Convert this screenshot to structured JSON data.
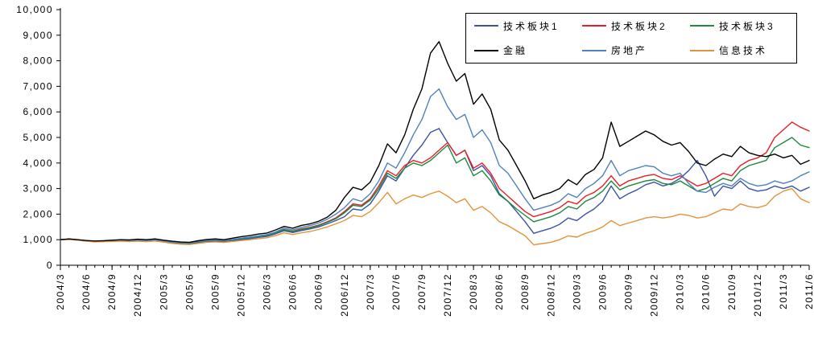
{
  "chart_data": {
    "type": "line",
    "title": "",
    "xlabel": "",
    "ylabel": "",
    "ylim": [
      0,
      10000
    ],
    "grid": false,
    "legend_position": "top-right",
    "y_tick_values": [
      0,
      1000,
      2000,
      3000,
      4000,
      5000,
      6000,
      7000,
      8000,
      9000,
      10000
    ],
    "y_tick_labels": [
      "0",
      "1,000",
      "2,000",
      "3,000",
      "4,000",
      "5,000",
      "6,000",
      "7,000",
      "8,000",
      "9,000",
      "10,000"
    ],
    "x_tick_positions": [
      0,
      3,
      6,
      9,
      12,
      15,
      18,
      21,
      24,
      27,
      30,
      33,
      36,
      39,
      42,
      45,
      48,
      51,
      54,
      57,
      60,
      63,
      66,
      69,
      72,
      75,
      78,
      81,
      84,
      87
    ],
    "x_tick_labels": [
      "2004/3",
      "2004/6",
      "2004/9",
      "2004/12",
      "2005/3",
      "2005/6",
      "2005/9",
      "2005/12",
      "2006/3",
      "2006/6",
      "2006/9",
      "2006/12",
      "2007/3",
      "2007/6",
      "2007/9",
      "2007/12",
      "2008/3",
      "2008/6",
      "2008/9",
      "2008/12",
      "2009/3",
      "2009/6",
      "2009/9",
      "2009/12",
      "2010/3",
      "2010/6",
      "2010/9",
      "2010/12",
      "2011/3",
      "2011/6"
    ],
    "series": [
      {
        "name": "技术板块1",
        "color": "#3a53a4",
        "values": [
          1000,
          1020,
          990,
          950,
          920,
          930,
          940,
          950,
          930,
          950,
          930,
          960,
          910,
          860,
          830,
          820,
          870,
          920,
          940,
          920,
          960,
          1000,
          1040,
          1090,
          1130,
          1230,
          1350,
          1280,
          1360,
          1420,
          1500,
          1620,
          1750,
          1900,
          2200,
          2150,
          2400,
          2900,
          3500,
          3300,
          3800,
          4300,
          4700,
          5200,
          5350,
          4800,
          4300,
          4500,
          3700,
          3900,
          3500,
          2800,
          2500,
          2100,
          1700,
          1250,
          1350,
          1450,
          1600,
          1850,
          1750,
          2000,
          2200,
          2500,
          3100,
          2600,
          2800,
          2950,
          3150,
          3250,
          3100,
          3200,
          3400,
          3700,
          4100,
          3500,
          2700,
          3100,
          3000,
          3300,
          3000,
          2900,
          2950,
          3100,
          3000,
          3100,
          2900,
          3050
        ]
      },
      {
        "name": "技术板块2",
        "color": "#ed1c24",
        "values": [
          1000,
          1025,
          1000,
          960,
          940,
          950,
          960,
          980,
          970,
          990,
          970,
          1000,
          950,
          900,
          870,
          860,
          910,
          960,
          980,
          960,
          1000,
          1050,
          1090,
          1140,
          1180,
          1280,
          1400,
          1330,
          1420,
          1480,
          1570,
          1700,
          1850,
          2100,
          2400,
          2350,
          2600,
          3100,
          3700,
          3500,
          3900,
          4100,
          4000,
          4200,
          4500,
          4800,
          4300,
          4500,
          3800,
          4000,
          3600,
          3000,
          2700,
          2400,
          2100,
          1900,
          2000,
          2100,
          2250,
          2500,
          2400,
          2700,
          2850,
          3100,
          3500,
          3100,
          3300,
          3400,
          3500,
          3550,
          3400,
          3350,
          3500,
          3300,
          3100,
          3200,
          3400,
          3600,
          3500,
          3900,
          4100,
          4200,
          4400,
          5000,
          5300,
          5600,
          5400,
          5250
        ]
      },
      {
        "name": "技术板块3",
        "color": "#1a8a3c",
        "values": [
          1000,
          1015,
          990,
          955,
          935,
          945,
          955,
          975,
          965,
          985,
          965,
          995,
          945,
          895,
          865,
          855,
          905,
          955,
          975,
          955,
          995,
          1040,
          1080,
          1130,
          1170,
          1270,
          1390,
          1320,
          1400,
          1460,
          1550,
          1680,
          1820,
          2050,
          2350,
          2300,
          2550,
          3000,
          3600,
          3400,
          3800,
          4000,
          3900,
          4100,
          4400,
          4700,
          4000,
          4200,
          3500,
          3700,
          3300,
          2750,
          2500,
          2200,
          1950,
          1700,
          1800,
          1900,
          2050,
          2300,
          2200,
          2500,
          2650,
          2900,
          3300,
          2950,
          3100,
          3200,
          3300,
          3350,
          3200,
          3150,
          3300,
          3100,
          2900,
          3000,
          3200,
          3400,
          3300,
          3700,
          3900,
          4000,
          4100,
          4600,
          4800,
          5000,
          4700,
          4600
        ]
      },
      {
        "name": "金融",
        "color": "#000000",
        "values": [
          1000,
          1030,
          1000,
          970,
          950,
          960,
          980,
          1000,
          990,
          1020,
          1000,
          1030,
          980,
          940,
          910,
          900,
          960,
          1010,
          1030,
          1000,
          1060,
          1120,
          1160,
          1220,
          1260,
          1380,
          1520,
          1450,
          1560,
          1620,
          1720,
          1880,
          2150,
          2650,
          3050,
          2950,
          3250,
          3900,
          4750,
          4400,
          5100,
          6100,
          6900,
          8300,
          8750,
          7900,
          7200,
          7500,
          6300,
          6700,
          6100,
          4900,
          4500,
          3900,
          3300,
          2600,
          2750,
          2850,
          3000,
          3350,
          3150,
          3550,
          3750,
          4200,
          5600,
          4650,
          4850,
          5050,
          5250,
          5100,
          4850,
          4700,
          4800,
          4450,
          4000,
          3900,
          4150,
          4350,
          4250,
          4650,
          4400,
          4300,
          4250,
          4350,
          4200,
          4300,
          3950,
          4100
        ]
      },
      {
        "name": "房地产",
        "color": "#4f81bd",
        "values": [
          1000,
          1010,
          980,
          950,
          930,
          940,
          950,
          970,
          960,
          980,
          960,
          990,
          950,
          900,
          880,
          870,
          920,
          970,
          990,
          970,
          1010,
          1060,
          1100,
          1150,
          1200,
          1300,
          1450,
          1380,
          1480,
          1550,
          1650,
          1800,
          2000,
          2250,
          2600,
          2500,
          2800,
          3300,
          4000,
          3800,
          4400,
          5100,
          5700,
          6600,
          6900,
          6200,
          5700,
          5900,
          5000,
          5300,
          4800,
          3900,
          3600,
          3100,
          2600,
          2150,
          2250,
          2350,
          2500,
          2800,
          2650,
          3000,
          3200,
          3500,
          4100,
          3500,
          3700,
          3800,
          3900,
          3850,
          3600,
          3500,
          3600,
          3200,
          2900,
          2850,
          3050,
          3200,
          3100,
          3400,
          3200,
          3100,
          3150,
          3300,
          3200,
          3300,
          3500,
          3650
        ]
      },
      {
        "name": "信息技术",
        "color": "#e3933c",
        "values": [
          1000,
          1010,
          980,
          940,
          915,
          925,
          930,
          945,
          930,
          945,
          925,
          950,
          905,
          855,
          825,
          810,
          855,
          900,
          915,
          895,
          930,
          965,
          1000,
          1040,
          1075,
          1160,
          1270,
          1200,
          1270,
          1320,
          1400,
          1500,
          1620,
          1750,
          1950,
          1900,
          2100,
          2450,
          2850,
          2400,
          2600,
          2750,
          2650,
          2800,
          2900,
          2700,
          2450,
          2600,
          2150,
          2300,
          2050,
          1700,
          1550,
          1350,
          1150,
          800,
          850,
          900,
          1000,
          1150,
          1100,
          1250,
          1350,
          1500,
          1750,
          1550,
          1650,
          1750,
          1850,
          1900,
          1850,
          1900,
          2000,
          1950,
          1850,
          1900,
          2050,
          2200,
          2150,
          2400,
          2300,
          2250,
          2350,
          2700,
          2900,
          3000,
          2600,
          2450
        ]
      }
    ]
  }
}
